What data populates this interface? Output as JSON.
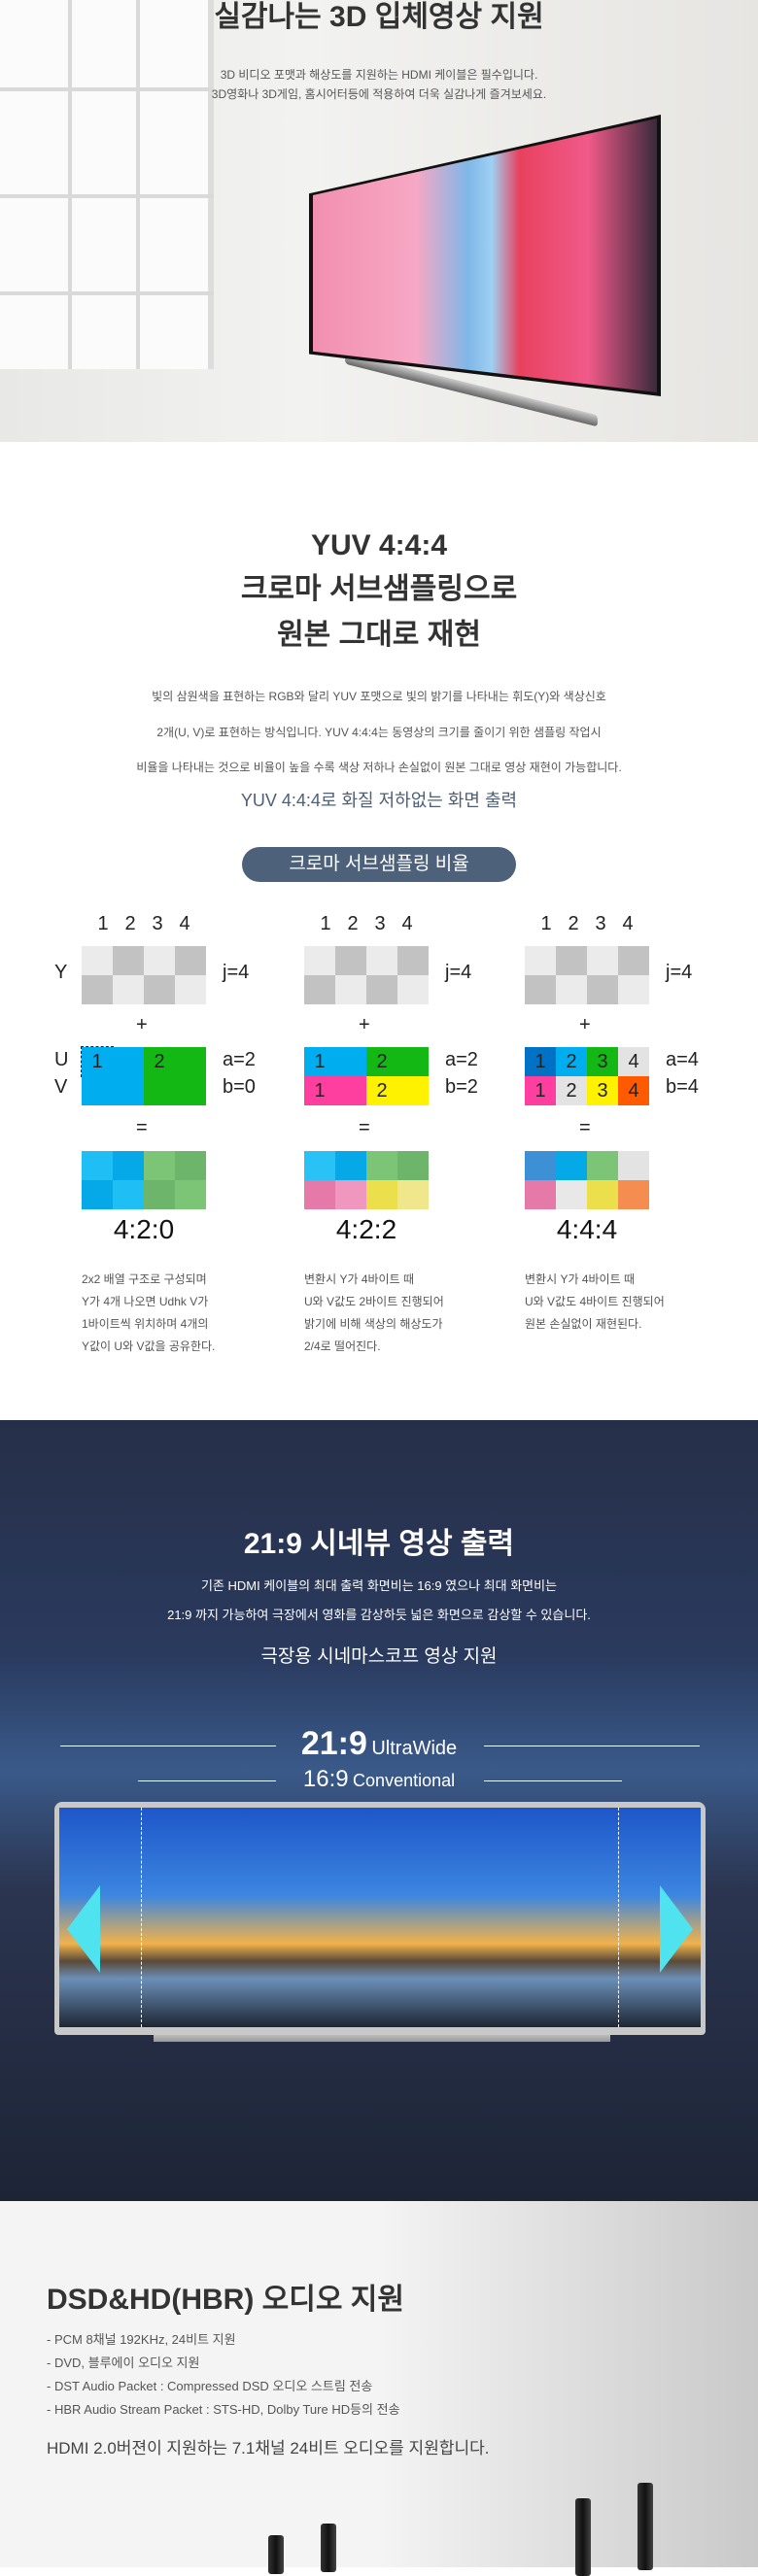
{
  "section_3d": {
    "title": "실감나는 3D 입체영상 지원",
    "lines": [
      "3D 비디오 포맷과 해상도를 지원하는 HDMI 케이블은 필수입니다.",
      "3D영화나 3D게임, 홈시어터등에 적용하여 더욱 실감나게 즐겨보세요."
    ]
  },
  "section_yuv": {
    "title_lines": [
      "YUV 4:4:4",
      "크로마 서브샘플링으로",
      "원본 그대로 재현"
    ],
    "paragraph": [
      "빛의 삼원색을 표현하는 RGB와 달리 YUV 포맷으로 빛의 밝기를 나타내는 휘도(Y)와 색상신호",
      "2개(U, V)로 표현하는 방식입니다. YUV 4:4:4는 동영상의 크기를 줄이기 위한 샘플링 작업시",
      "비율을 나타내는 것으로 비율이 높을 수록 색상 저하나 손실없이 원본 그대로 영상 재현이 가능합니다."
    ],
    "subheading": "YUV 4:4:4로 화질 저하없는 화면 출력",
    "pill": "크로마 서브샘플링 비율",
    "labels": {
      "y": "Y",
      "u": "U",
      "v": "V",
      "plus": "+",
      "equals": "=",
      "cols": [
        "1",
        "2",
        "3",
        "4"
      ]
    },
    "diagrams": [
      {
        "ratio": "4:2:0",
        "j": "j=4",
        "a": "a=2",
        "b": "b=0",
        "uv_colors": [
          "#00aeef",
          "#00aeef",
          "#14b814",
          "#14b814",
          "#00aeef",
          "#00aeef",
          "#14b814",
          "#14b814"
        ],
        "uv_numbers": [
          "1",
          "",
          "2",
          "",
          "",
          "",
          "",
          ""
        ],
        "result_colors": [
          "#1fbef5",
          "#05a9e8",
          "#7cc576",
          "#6db56b",
          "#05a9e8",
          "#1fbef5",
          "#6db56b",
          "#7cc576"
        ],
        "desc": [
          "2x2 배열 구조로 구성되며",
          "Y가 4개 나오면 Udhk V가",
          "1바이트씩 위치하며 4개의",
          "Y값이 U와 V값을 공유한다."
        ]
      },
      {
        "ratio": "4:2:2",
        "j": "j=4",
        "a": "a=2",
        "b": "b=2",
        "uv_colors": [
          "#00aeef",
          "#00aeef",
          "#14b814",
          "#14b814",
          "#ff3fa0",
          "#ff3fa0",
          "#fff200",
          "#fff200"
        ],
        "uv_numbers": [
          "1",
          "",
          "2",
          "",
          "1",
          "",
          "2",
          ""
        ],
        "result_colors": [
          "#29c2f7",
          "#05a9e8",
          "#7cc576",
          "#6db56b",
          "#e579a8",
          "#f097c0",
          "#ebe04c",
          "#f0e68c"
        ],
        "desc": [
          "변환시 Y가 4바이트 때",
          "U와 V값도 2바이트 진행되어",
          "밝기에 비해 색상의 해상도가",
          "2/4로 떨어진다."
        ]
      },
      {
        "ratio": "4:4:4",
        "j": "j=4",
        "a": "a=4",
        "b": "b=4",
        "uv_colors": [
          "#0072c6",
          "#00aeef",
          "#14b814",
          "#e3e3e3",
          "#ff3fa0",
          "#e3e3e3",
          "#fff200",
          "#ff5a00"
        ],
        "uv_numbers": [
          "1",
          "2",
          "3",
          "4",
          "1",
          "2",
          "3",
          "4"
        ],
        "result_colors": [
          "#3d8fd6",
          "#05a9e8",
          "#7cc576",
          "#e3e3e3",
          "#e579a8",
          "#e8e8e8",
          "#ebe04c",
          "#f58c50"
        ],
        "desc": [
          "변환시 Y가 4바이트 때",
          "U와 V값도 4바이트 진행되어",
          "원본 손실없이 재현된다."
        ]
      }
    ],
    "y_colors": [
      "#ebebeb",
      "#c2c2c2",
      "#ebebeb",
      "#c2c2c2",
      "#c2c2c2",
      "#ebebeb",
      "#c2c2c2",
      "#ebebeb"
    ]
  },
  "section_cinema": {
    "title": "21:9 시네뷰 영상 출력",
    "lines": [
      "기존 HDMI 케이블의 최대 출력 화면비는 16:9 였으나 최대 화면비는",
      "21:9 까지 가능하여 극장에서 영화를 감상하듯 넓은 화면으로 감상할 수 있습니다."
    ],
    "subheading": "극장용 시네마스코프 영상 지원",
    "ultrawide_ratio": "21:9",
    "ultrawide_label": "UltraWide",
    "conventional_ratio": "16:9",
    "conventional_label": "Conventional",
    "arrow_color": "#4fe3f0"
  },
  "section_audio": {
    "title": "DSD&HD(HBR) 오디오 지원",
    "bullets": [
      "- PCM 8채널 192KHz, 24비트 지원",
      "- DVD, 블루에이 오디오 지원",
      "- DST Audio Packet : Compressed DSD 오디오 스트림 전송",
      "- HBR Audio Stream Packet : STS-HD, Dolby Ture HD등의 전송"
    ],
    "summary": "HDMI 2.0버젼이 지원하는 7.1채널 24비트 오디오를 지원합니다."
  }
}
